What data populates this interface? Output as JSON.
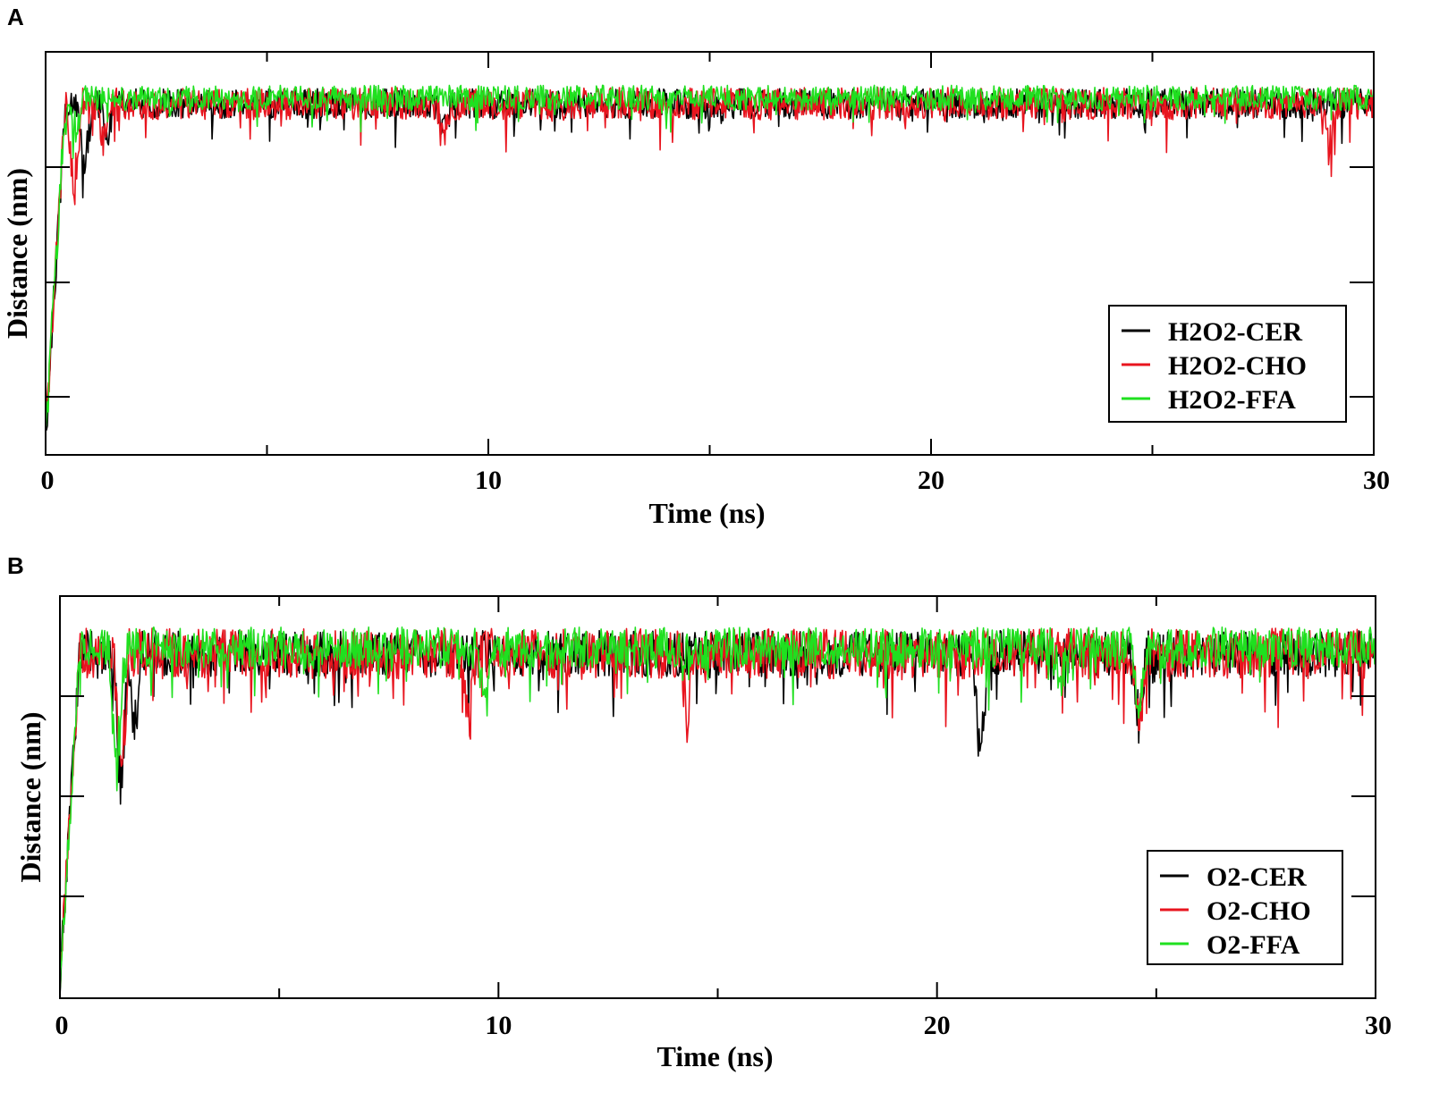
{
  "panels": [
    {
      "label": "A"
    },
    {
      "label": "B"
    }
  ],
  "chart_data": [
    {
      "type": "line",
      "panel": "A",
      "title": "",
      "xlabel": "Time (ns)",
      "ylabel": "Distance (nm)",
      "xlim": [
        0,
        30
      ],
      "ylim": [
        0,
        3.5
      ],
      "x_ticks": [
        "0",
        "10",
        "20",
        "30"
      ],
      "y_ticks": [],
      "grid": false,
      "legend_position": "bottom-right",
      "series": [
        {
          "name": "H2O2-CER",
          "color": "#000000",
          "baseline": 3.05,
          "noise": 0.13,
          "dips": [
            [
              0.9,
              0.75
            ],
            [
              1.4,
              0.35
            ],
            [
              9.0,
              0.25
            ]
          ]
        },
        {
          "name": "H2O2-CHO",
          "color": "#e8141e",
          "baseline": 3.05,
          "noise": 0.14,
          "dips": [
            [
              0.65,
              1.05
            ],
            [
              1.3,
              0.4
            ],
            [
              9.0,
              0.4
            ],
            [
              29.0,
              0.35
            ]
          ]
        },
        {
          "name": "H2O2-FFA",
          "color": "#1fe01f",
          "baseline": 3.1,
          "noise": 0.11,
          "dips": [
            [
              0.35,
              0.8
            ],
            [
              0.7,
              0.4
            ]
          ]
        }
      ]
    },
    {
      "type": "line",
      "panel": "B",
      "title": "",
      "xlabel": "Time (ns)",
      "ylabel": "Distance (nm)",
      "xlim": [
        0,
        30
      ],
      "ylim": [
        0,
        3.5
      ],
      "x_ticks": [
        "0",
        "10",
        "20",
        "30"
      ],
      "y_ticks": [],
      "grid": false,
      "legend_position": "bottom-right",
      "series": [
        {
          "name": "O2-CER",
          "color": "#000000",
          "baseline": 3.0,
          "noise": 0.2,
          "dips": [
            [
              1.4,
              1.45
            ],
            [
              1.7,
              0.9
            ],
            [
              21.0,
              0.95
            ],
            [
              24.6,
              0.7
            ]
          ]
        },
        {
          "name": "O2-CHO",
          "color": "#e8141e",
          "baseline": 3.0,
          "noise": 0.22,
          "dips": [
            [
              1.4,
              1.3
            ],
            [
              9.3,
              0.8
            ],
            [
              14.3,
              0.6
            ],
            [
              24.6,
              0.75
            ]
          ]
        },
        {
          "name": "O2-FFA",
          "color": "#1fe01f",
          "baseline": 3.05,
          "noise": 0.18,
          "dips": [
            [
              1.3,
              1.35
            ],
            [
              9.7,
              0.6
            ],
            [
              24.6,
              0.65
            ],
            [
              22.8,
              0.4
            ]
          ]
        }
      ]
    }
  ]
}
